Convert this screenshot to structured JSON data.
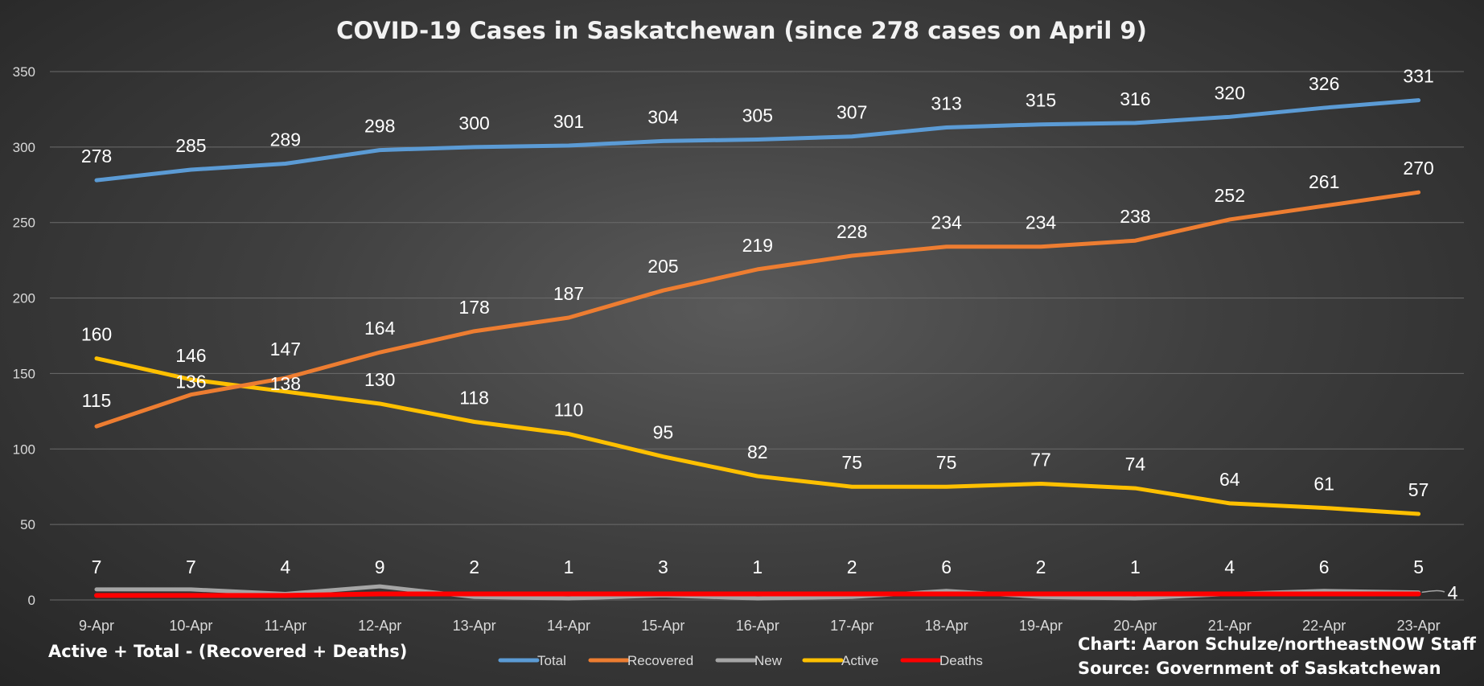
{
  "chart_data": {
    "type": "line",
    "title": "COVID-19 Cases in Saskatchewan (since 278 cases on April 9)",
    "categories": [
      "9-Apr",
      "10-Apr",
      "11-Apr",
      "12-Apr",
      "13-Apr",
      "14-Apr",
      "15-Apr",
      "16-Apr",
      "17-Apr",
      "18-Apr",
      "19-Apr",
      "20-Apr",
      "21-Apr",
      "22-Apr",
      "23-Apr"
    ],
    "ylim": [
      0,
      350
    ],
    "yticks": [
      0,
      50,
      100,
      150,
      200,
      250,
      300,
      350
    ],
    "grid": true,
    "legend_position": "bottom",
    "series": [
      {
        "name": "Total",
        "color": "#5b9bd5",
        "values": [
          278,
          285,
          289,
          298,
          300,
          301,
          304,
          305,
          307,
          313,
          315,
          316,
          320,
          326,
          331
        ]
      },
      {
        "name": "Recovered",
        "color": "#ed7d31",
        "values": [
          115,
          136,
          147,
          164,
          178,
          187,
          205,
          219,
          228,
          234,
          234,
          238,
          252,
          261,
          270
        ]
      },
      {
        "name": "New",
        "color": "#a5a5a5",
        "values": [
          7,
          7,
          4,
          9,
          2,
          1,
          3,
          1,
          2,
          6,
          2,
          1,
          4,
          6,
          5
        ]
      },
      {
        "name": "Active",
        "color": "#ffc000",
        "values": [
          160,
          146,
          138,
          130,
          118,
          110,
          95,
          82,
          75,
          75,
          77,
          74,
          64,
          61,
          57
        ]
      },
      {
        "name": "Deaths",
        "color": "#ff0000",
        "values": [
          3,
          3,
          3,
          4,
          4,
          4,
          4,
          4,
          4,
          4,
          4,
          4,
          4,
          4,
          4
        ]
      }
    ],
    "data_labels": {
      "Total": [
        "278",
        "285",
        "289",
        "298",
        "300",
        "301",
        "304",
        "305",
        "307",
        "313",
        "315",
        "316",
        "320",
        "326",
        "331"
      ],
      "Recovered": [
        "115",
        "136",
        "147",
        "164",
        "178",
        "187",
        "205",
        "219",
        "228",
        "234",
        "234",
        "238",
        "252",
        "261",
        "270"
      ],
      "Active": [
        "160",
        "146",
        "138",
        "130",
        "118",
        "110",
        "95",
        "82",
        "75",
        "75",
        "77",
        "74",
        "64",
        "61",
        "57"
      ],
      "New": [
        "7",
        "7",
        "4",
        "9",
        "2",
        "1",
        "3",
        "1",
        "2",
        "6",
        "2",
        "1",
        "4",
        "6",
        "5"
      ],
      "Deaths_last": "4"
    },
    "annotations": {
      "formula": "Active + Total - (Recovered + Deaths)",
      "credit": "Chart: Aaron Schulze/northeastNOW Staff",
      "source": "Source: Government of Saskatchewan"
    }
  }
}
